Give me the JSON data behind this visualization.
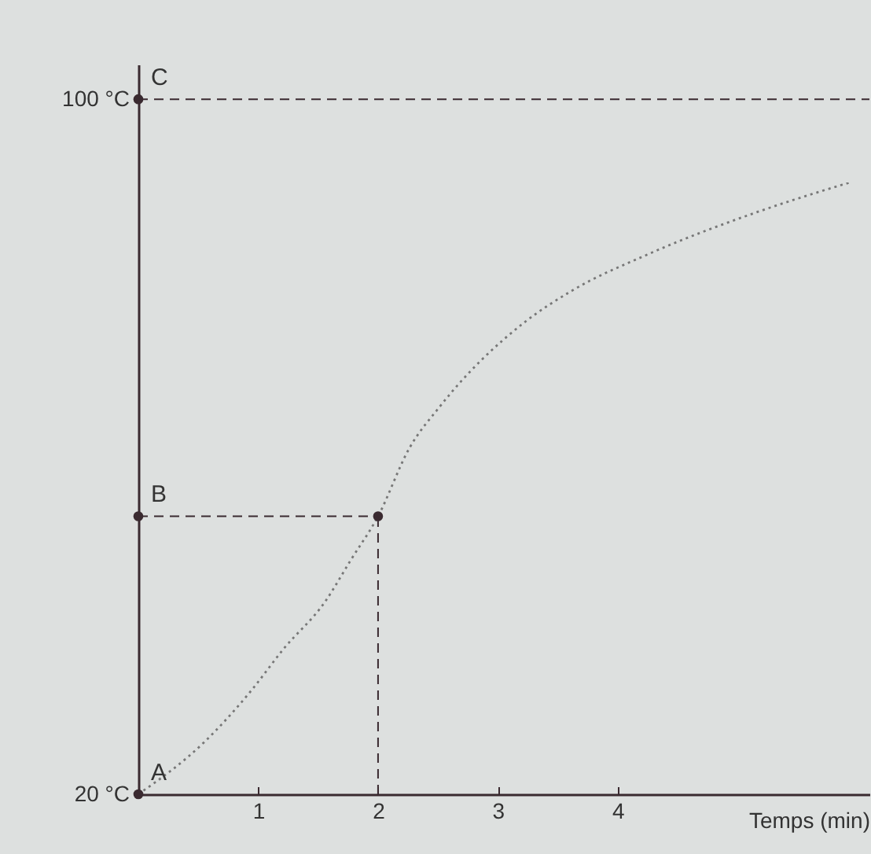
{
  "chart_data": {
    "type": "line",
    "xlabel": "Temps (min)",
    "xlim": [
      0,
      6.1
    ],
    "ylim": [
      20,
      104
    ],
    "xticks": [
      1,
      2,
      3,
      4
    ],
    "yticks": [
      {
        "value": 20,
        "label": "20 °C"
      },
      {
        "value": 100,
        "label": "100 °C"
      }
    ],
    "series": [
      {
        "color": "#777777",
        "line_style": "dotted",
        "x": [
          0,
          0.55,
          0.94,
          1.21,
          1.56,
          1.77,
          2,
          2.26,
          2.52,
          3.22,
          3.61,
          4.26,
          5.14,
          5.93
        ],
        "values": [
          20,
          26,
          31.9,
          36.7,
          42.2,
          46.9,
          52,
          59.8,
          64.7,
          74.3,
          77.9,
          82.2,
          86.9,
          90.4
        ]
      },
      {
        "type": "scatter",
        "color": "#3a2a30",
        "marker": "circle",
        "x": [
          2
        ],
        "values": [
          52
        ]
      },
      {
        "type": "scatter",
        "color": "#3a2a30",
        "marker": "circle",
        "x": [
          0,
          0,
          0
        ],
        "values": [
          20,
          52,
          100
        ],
        "value_labels": [
          "A",
          "B",
          "C"
        ]
      }
    ],
    "ref_lines": [
      {
        "axis": "y",
        "value": 100,
        "color": "#3a2a30",
        "line_style": "dashed"
      },
      {
        "axis": "y",
        "value": 52,
        "color": "#3a2a30",
        "line_style": "dashed"
      },
      {
        "axis": "x",
        "value": 2,
        "color": "#3a2a30",
        "line_style": "dashed"
      }
    ],
    "marker": "none"
  }
}
